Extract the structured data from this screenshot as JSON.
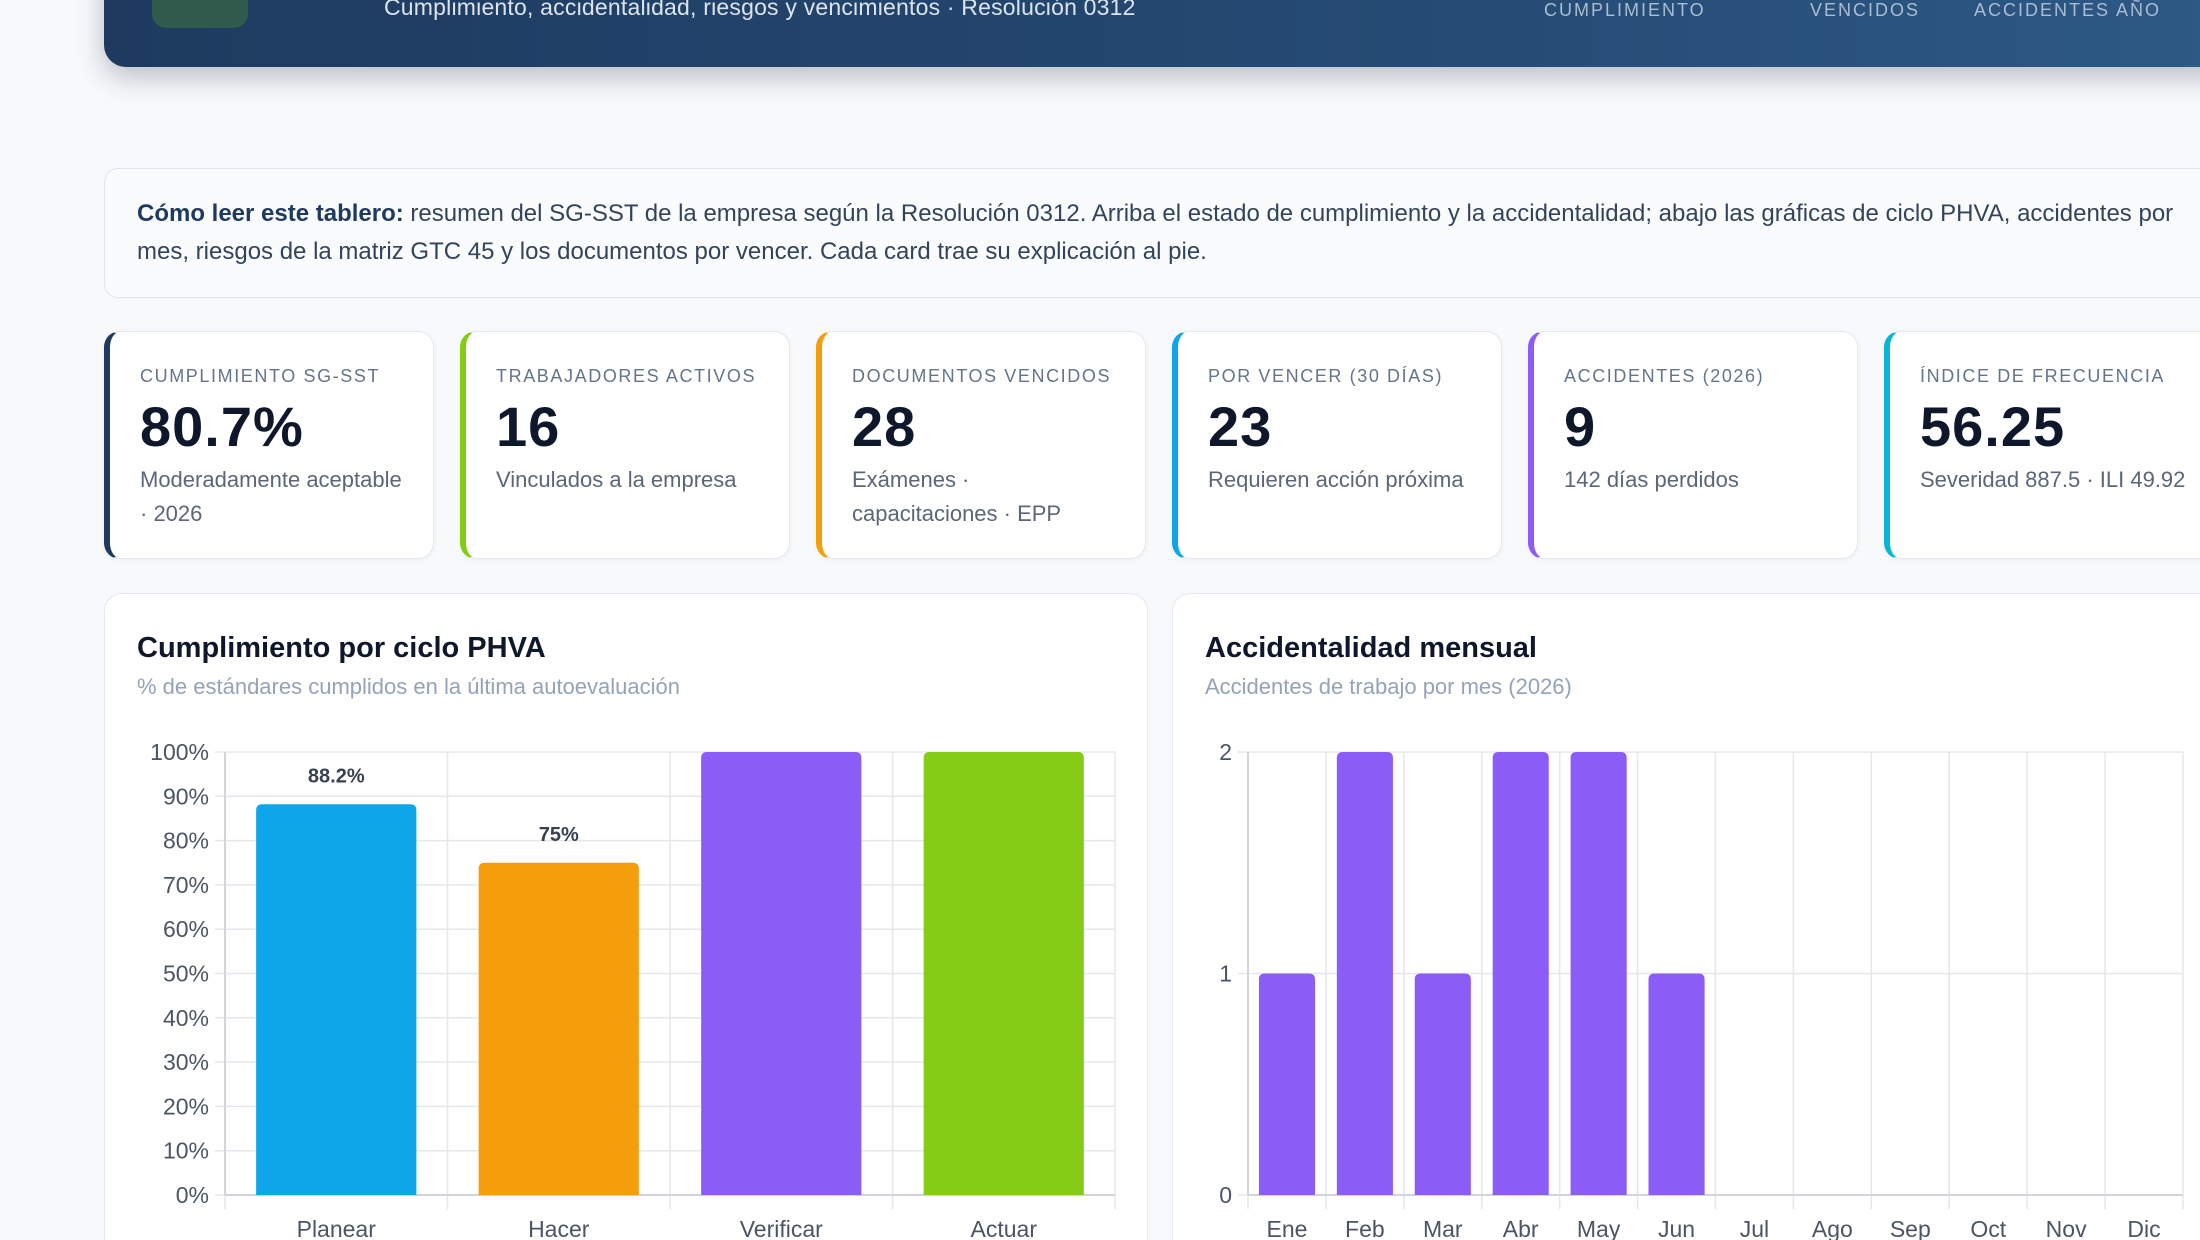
{
  "header": {
    "subtitle": "Cumplimiento, accidentalidad, riesgos y vencimientos · Resolución 0312",
    "stat_labels": [
      "Cumplimiento",
      "Vencidos",
      "Accidentes año"
    ]
  },
  "info": {
    "lead": "Cómo leer este tablero:",
    "text": " resumen del SG-SST de la empresa según la Resolución 0312. Arriba el estado de cumplimiento y la accidentalidad; abajo las gráficas de ciclo PHVA, accidentes por mes, riesgos de la matriz GTC 45 y los documentos por vencer. Cada card trae su explicación al pie."
  },
  "kpis": [
    {
      "label": "Cumplimiento SG-SST",
      "value": "80.7%",
      "sub": "Moderadamente aceptable · 2026",
      "color": "#1e3a5f"
    },
    {
      "label": "Trabajadores activos",
      "value": "16",
      "sub": "Vinculados a la empresa",
      "color": "#84cc16"
    },
    {
      "label": "Documentos vencidos",
      "value": "28",
      "sub": "Exámenes · capacitaciones · EPP",
      "color": "#f59e0b"
    },
    {
      "label": "Por vencer (30 días)",
      "value": "23",
      "sub": "Requieren acción próxima",
      "color": "#0ea5e9"
    },
    {
      "label": "Accidentes (2026)",
      "value": "9",
      "sub": "142 días perdidos",
      "color": "#8b5cf6"
    },
    {
      "label": "Índice de frecuencia",
      "value": "56.25",
      "sub": "Severidad 887.5 · ILI 49.92",
      "color": "#06b6d4"
    }
  ],
  "charts": {
    "phva": {
      "title": "Cumplimiento por ciclo PHVA",
      "subtitle": "% de estándares cumplidos en la última autoevaluación"
    },
    "monthly": {
      "title": "Accidentalidad mensual",
      "subtitle": "Accidentes de trabajo por mes (2026)"
    }
  },
  "chart_data": [
    {
      "type": "bar",
      "categories": [
        "Planear",
        "Hacer",
        "Verificar",
        "Actuar"
      ],
      "values": [
        88.2,
        75,
        100,
        100
      ],
      "data_labels": [
        "88.2%",
        "75%",
        "",
        ""
      ],
      "colors": [
        "#0ea5e9",
        "#f59e0b",
        "#8b5cf6",
        "#84cc16"
      ],
      "yticks": [
        "0%",
        "10%",
        "20%",
        "30%",
        "40%",
        "50%",
        "60%",
        "70%",
        "80%",
        "90%",
        "100%"
      ],
      "ylim": [
        0,
        100
      ],
      "grid": true
    },
    {
      "type": "bar",
      "categories": [
        "Ene",
        "Feb",
        "Mar",
        "Abr",
        "May",
        "Jun",
        "Jul",
        "Ago",
        "Sep",
        "Oct",
        "Nov",
        "Dic"
      ],
      "values": [
        1,
        2,
        1,
        2,
        2,
        1,
        0,
        0,
        0,
        0,
        0,
        0
      ],
      "colors": [
        "#8b5cf6"
      ],
      "yticks": [
        "0",
        "1",
        "2"
      ],
      "ylim": [
        0,
        2
      ],
      "grid": true
    }
  ]
}
